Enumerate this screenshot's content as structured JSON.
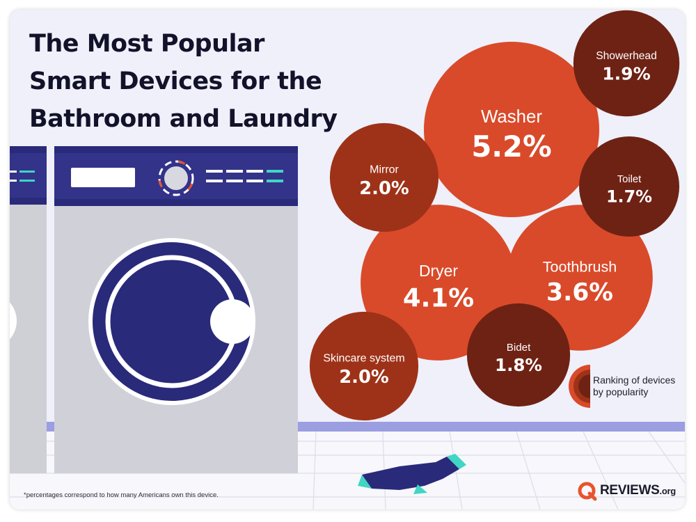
{
  "title_lines": [
    "The Most Popular",
    "Smart Devices for the",
    "Bathroom and Laundry"
  ],
  "chart_data": {
    "type": "bubble",
    "unit": "%",
    "points": [
      {
        "label": "Washer",
        "value": 5.2,
        "value_text": "5.2%"
      },
      {
        "label": "Dryer",
        "value": 4.1,
        "value_text": "4.1%"
      },
      {
        "label": "Toothbrush",
        "value": 3.6,
        "value_text": "3.6%"
      },
      {
        "label": "Mirror",
        "value": 2.0,
        "value_text": "2.0%"
      },
      {
        "label": "Skincare system",
        "value": 2.0,
        "value_text": "2.0%"
      },
      {
        "label": "Showerhead",
        "value": 1.9,
        "value_text": "1.9%"
      },
      {
        "label": "Bidet",
        "value": 1.8,
        "value_text": "1.8%"
      },
      {
        "label": "Toilet",
        "value": 1.7,
        "value_text": "1.7%"
      }
    ],
    "legend_lines": [
      "Ranking of devices",
      "by popularity"
    ],
    "colors": {
      "large": "#d94a2a",
      "small": "#9e3218",
      "smallest": "#6e2214"
    }
  },
  "footnote": "*percentages correspond to how many Americans own this device.",
  "brand": {
    "name": "REVIEWS",
    "suffix": ".org",
    "color": "#e8542c"
  }
}
